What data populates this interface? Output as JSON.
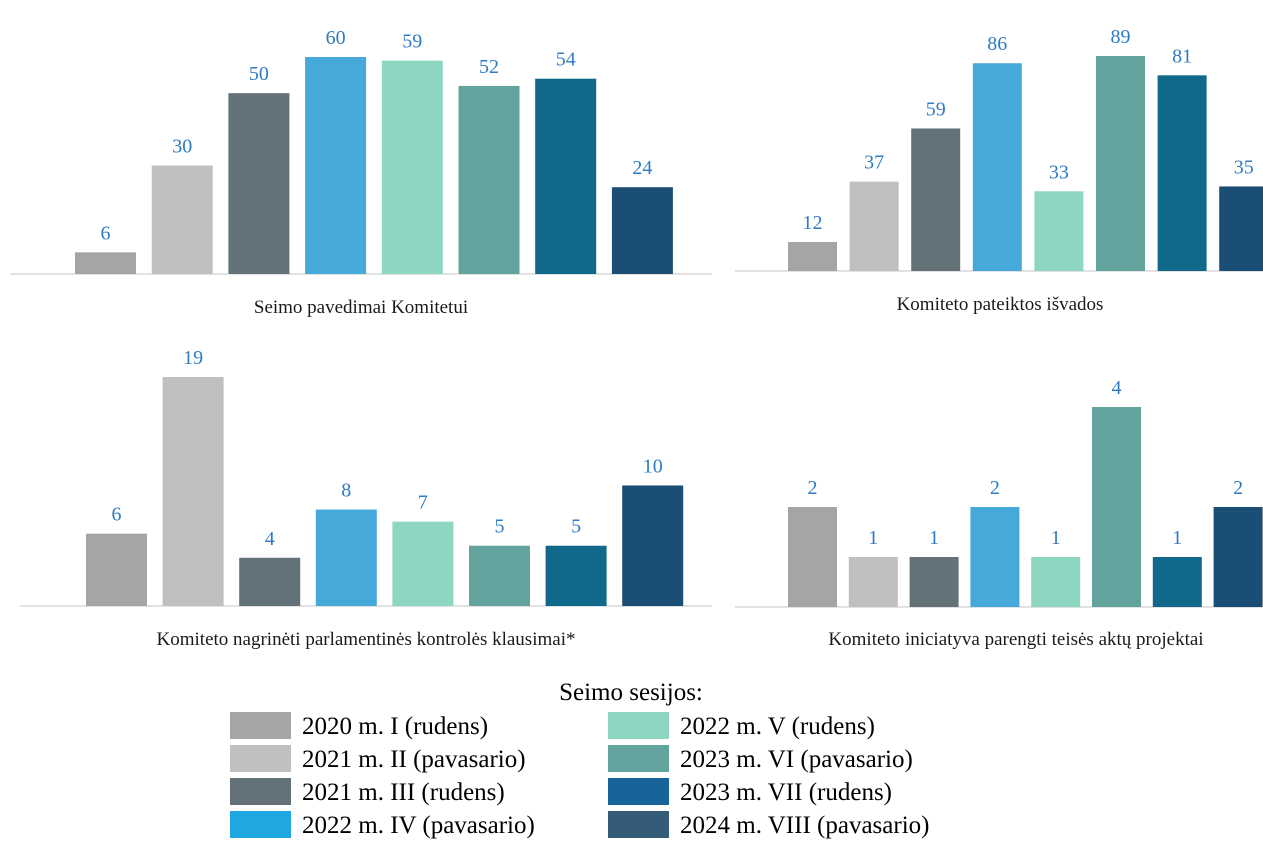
{
  "series": [
    {
      "name": "2020 m. I (rudens)",
      "color": "#A5A5A5",
      "legend_color": "#A5A5A5"
    },
    {
      "name": "2021 m. II (pavasario)",
      "color": "#BFBFBF",
      "legend_color": "#BFBFBF"
    },
    {
      "name": "2021 m. III (rudens)",
      "color": "#627278",
      "legend_color": "#627278"
    },
    {
      "name": "2022 m. IV (pavasario)",
      "color": "#47A9DA",
      "legend_color": "#1EA7E0"
    },
    {
      "name": "2022 m. V (rudens)",
      "color": "#8DD6C2",
      "legend_color": "#8DD6C2"
    },
    {
      "name": "2023 m. VI (pavasario)",
      "color": "#62A39E",
      "legend_color": "#62A39E"
    },
    {
      "name": "2023 m. VII (rudens)",
      "color": "#10688A",
      "legend_color": "#17649A"
    },
    {
      "name": "2024 m. VIII (pavasario)",
      "color": "#1B4E74",
      "legend_color": "#345B78"
    }
  ],
  "legend": {
    "title": "Seimo sesijos:"
  },
  "chart_data": [
    {
      "type": "bar",
      "title": "Seimo pavedimai Komitetui",
      "categories": [
        "2020 m. I (rudens)",
        "2021 m. II (pavasario)",
        "2021 m. III (rudens)",
        "2022 m. IV (pavasario)",
        "2022 m. V (rudens)",
        "2023 m. VI (pavasario)",
        "2023 m. VII (rudens)",
        "2024 m. VIII (pavasario)"
      ],
      "values": [
        6,
        30,
        50,
        60,
        59,
        52,
        54,
        24
      ],
      "ylim": [
        0,
        60
      ],
      "grid": false
    },
    {
      "type": "bar",
      "title": "Komiteto pateiktos išvados",
      "categories": [
        "2020 m. I (rudens)",
        "2021 m. II (pavasario)",
        "2021 m. III (rudens)",
        "2022 m. IV (pavasario)",
        "2022 m. V (rudens)",
        "2023 m. VI (pavasario)",
        "2023 m. VII (rudens)",
        "2024 m. VIII (pavasario)"
      ],
      "values": [
        12,
        37,
        59,
        86,
        33,
        89,
        81,
        35
      ],
      "ylim": [
        0,
        89
      ],
      "grid": false
    },
    {
      "type": "bar",
      "title": "Komiteto nagrinėti parlamentinės kontrolės klausimai*",
      "categories": [
        "2020 m. I (rudens)",
        "2021 m. II (pavasario)",
        "2021 m. III (rudens)",
        "2022 m. IV (pavasario)",
        "2022 m. V (rudens)",
        "2023 m. VI (pavasario)",
        "2023 m. VII (rudens)",
        "2024 m. VIII (pavasario)"
      ],
      "values": [
        6,
        19,
        4,
        8,
        7,
        5,
        5,
        10
      ],
      "ylim": [
        0,
        19
      ],
      "grid": false
    },
    {
      "type": "bar",
      "title": "Komiteto iniciatyva parengti teisės aktų projektai",
      "categories": [
        "2020 m. I (rudens)",
        "2021 m. II (pavasario)",
        "2021 m. III (rudens)",
        "2022 m. IV (pavasario)",
        "2022 m. V (rudens)",
        "2023 m. VI (pavasario)",
        "2023 m. VII (rudens)",
        "2024 m. VIII (pavasario)"
      ],
      "values": [
        2,
        1,
        1,
        2,
        1,
        4,
        1,
        2
      ],
      "ylim": [
        0,
        4
      ],
      "grid": false
    }
  ]
}
